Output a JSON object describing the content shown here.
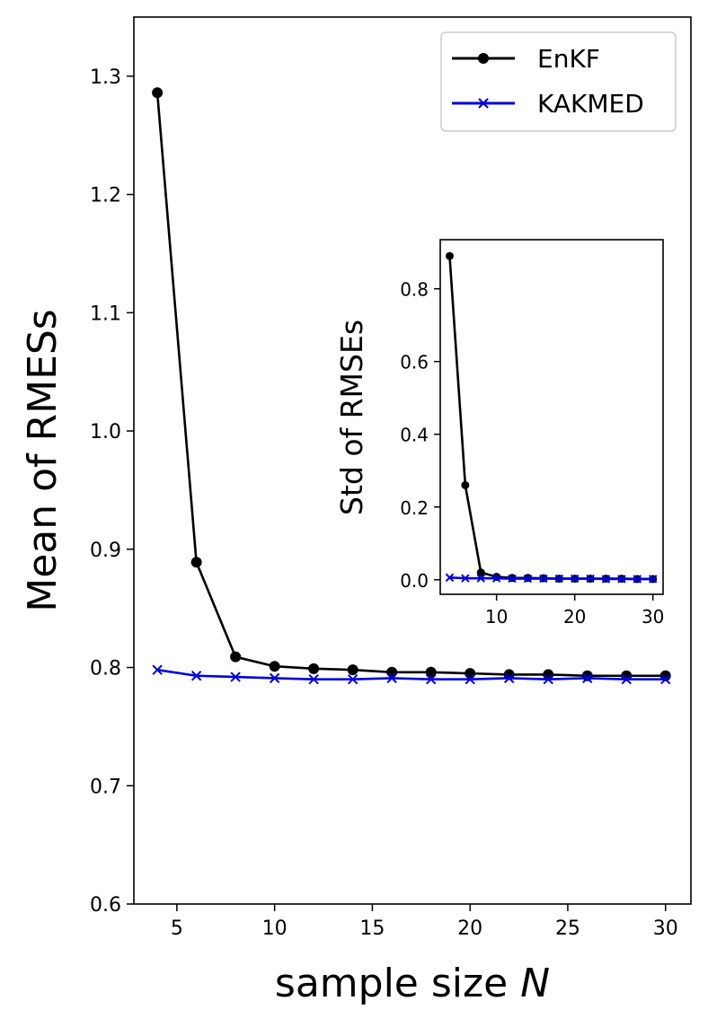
{
  "chart_data": [
    {
      "id": "main",
      "type": "line",
      "xlabel": "sample size",
      "xlabel_symbol": "N",
      "ylabel": "Mean of RMESs",
      "xlim": [
        2.8,
        31.3
      ],
      "ylim": [
        0.6,
        1.35
      ],
      "xticks": [
        5,
        10,
        15,
        20,
        25,
        30
      ],
      "yticks": [
        0.6,
        0.7,
        0.8,
        0.9,
        1.0,
        1.1,
        1.2,
        1.3
      ],
      "ytick_labels": [
        "0.6",
        "0.7",
        "0.8",
        "0.9",
        "1.0",
        "1.1",
        "1.2",
        "1.3"
      ],
      "grid": false,
      "legend_position": "top-right",
      "x": [
        4,
        6,
        8,
        10,
        12,
        14,
        16,
        18,
        20,
        22,
        24,
        26,
        28,
        30
      ],
      "series": [
        {
          "name": "EnKF",
          "color": "#000000",
          "marker": "circle",
          "values": [
            1.286,
            0.889,
            0.809,
            0.801,
            0.799,
            0.798,
            0.796,
            0.796,
            0.795,
            0.794,
            0.794,
            0.793,
            0.793,
            0.793
          ]
        },
        {
          "name": "KAKMED",
          "color": "#0000dd",
          "marker": "x",
          "values": [
            0.798,
            0.793,
            0.792,
            0.791,
            0.79,
            0.79,
            0.791,
            0.79,
            0.79,
            0.791,
            0.79,
            0.791,
            0.79,
            0.79
          ]
        }
      ]
    },
    {
      "id": "inset",
      "type": "line",
      "xlabel": "",
      "ylabel": "Std of RMSEs",
      "xlim": [
        2.8,
        31.3
      ],
      "ylim": [
        -0.04,
        0.935
      ],
      "xticks": [
        10,
        20,
        30
      ],
      "yticks": [
        0.0,
        0.2,
        0.4,
        0.6,
        0.8
      ],
      "ytick_labels": [
        "0.0",
        "0.2",
        "0.4",
        "0.6",
        "0.8"
      ],
      "grid": false,
      "x": [
        4,
        6,
        8,
        10,
        12,
        14,
        16,
        18,
        20,
        22,
        24,
        26,
        28,
        30
      ],
      "series": [
        {
          "name": "EnKF",
          "color": "#000000",
          "marker": "circle",
          "values": [
            0.89,
            0.26,
            0.02,
            0.008,
            0.005,
            0.005,
            0.004,
            0.003,
            0.003,
            0.003,
            0.003,
            0.003,
            0.002,
            0.002
          ]
        },
        {
          "name": "KAKMED",
          "color": "#0000dd",
          "marker": "x",
          "values": [
            0.006,
            0.004,
            0.004,
            0.004,
            0.003,
            0.003,
            0.003,
            0.003,
            0.003,
            0.003,
            0.002,
            0.002,
            0.002,
            0.002
          ]
        }
      ]
    }
  ]
}
